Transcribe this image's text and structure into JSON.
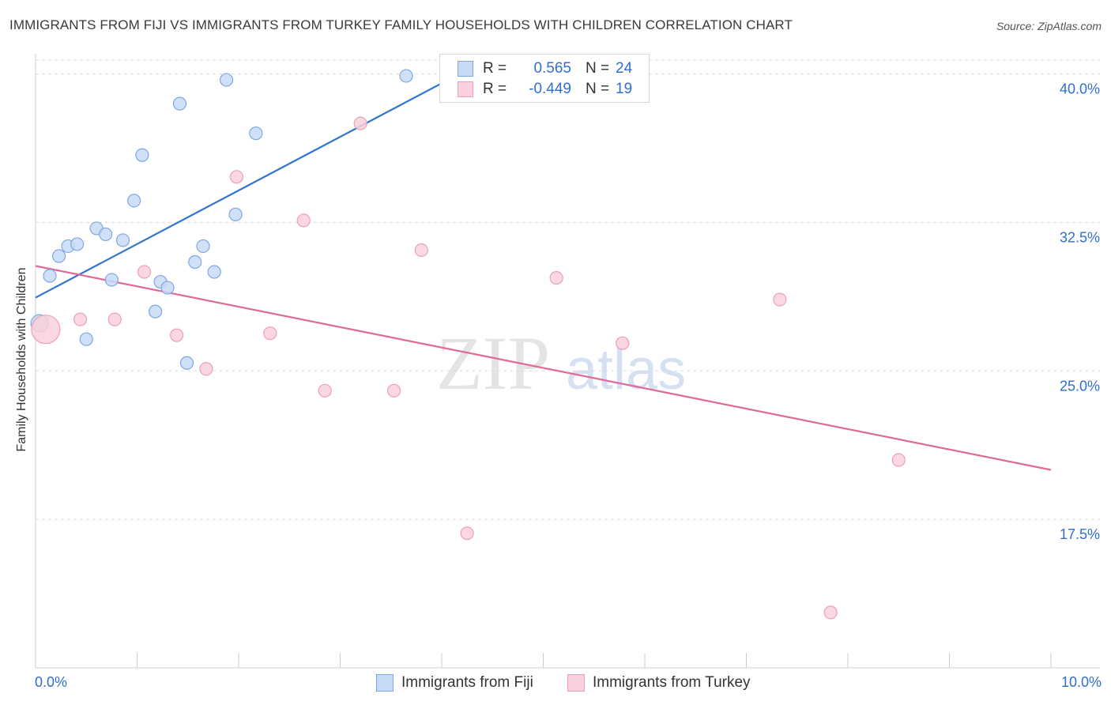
{
  "header": {
    "title": "IMMIGRANTS FROM FIJI VS IMMIGRANTS FROM TURKEY FAMILY HOUSEHOLDS WITH CHILDREN CORRELATION CHART",
    "source": "Source: ZipAtlas.com"
  },
  "watermark": {
    "zip": "ZIP",
    "atlas": "atlas"
  },
  "colors": {
    "fiji_fill": "#c7dbf7",
    "fiji_stroke": "#7fa8e0",
    "fiji_line": "#2f74d0",
    "turkey_fill": "#f9d0dc",
    "turkey_stroke": "#eba1b8",
    "turkey_line": "#e0699a",
    "axis_text": "#2f6fd0",
    "grid": "#dddddd"
  },
  "stats_legend": {
    "fiji": {
      "r_label": "R =",
      "r_value": "0.565",
      "n_label": "N =",
      "n_value": "24"
    },
    "turkey": {
      "r_label": "R =",
      "r_value": "-0.449",
      "n_label": "N =",
      "n_value": "19"
    }
  },
  "bottom_legend": {
    "fiji": "Immigrants from Fiji",
    "turkey": "Immigrants from Turkey"
  },
  "chart_data": {
    "type": "scatter",
    "title": "IMMIGRANTS FROM FIJI VS IMMIGRANTS FROM TURKEY FAMILY HOUSEHOLDS WITH CHILDREN CORRELATION CHART",
    "xlabel": "",
    "ylabel": "Family Households with Children",
    "xlim": [
      0,
      10
    ],
    "ylim": [
      10,
      40.7
    ],
    "x_tick_labels": {
      "min": "0.0%",
      "max": "10.0%"
    },
    "y_ticks": [
      {
        "value": 17.5,
        "label": "17.5%"
      },
      {
        "value": 25.0,
        "label": "25.0%"
      },
      {
        "value": 32.5,
        "label": "32.5%"
      },
      {
        "value": 40.0,
        "label": "40.0%"
      }
    ],
    "grid": true,
    "series": [
      {
        "name": "Immigrants from Fiji",
        "points": [
          {
            "x": 0.04,
            "y": 27.4,
            "size": "large"
          },
          {
            "x": 0.14,
            "y": 29.8
          },
          {
            "x": 0.23,
            "y": 30.8
          },
          {
            "x": 0.32,
            "y": 31.3
          },
          {
            "x": 0.41,
            "y": 31.4
          },
          {
            "x": 0.5,
            "y": 26.6
          },
          {
            "x": 0.6,
            "y": 32.2
          },
          {
            "x": 0.69,
            "y": 31.9
          },
          {
            "x": 0.75,
            "y": 29.6
          },
          {
            "x": 0.86,
            "y": 31.6
          },
          {
            "x": 0.97,
            "y": 33.6
          },
          {
            "x": 1.05,
            "y": 35.9
          },
          {
            "x": 1.18,
            "y": 28.0
          },
          {
            "x": 1.23,
            "y": 29.5
          },
          {
            "x": 1.3,
            "y": 29.2
          },
          {
            "x": 1.42,
            "y": 38.5
          },
          {
            "x": 1.49,
            "y": 25.4
          },
          {
            "x": 1.57,
            "y": 30.5
          },
          {
            "x": 1.65,
            "y": 31.3
          },
          {
            "x": 1.76,
            "y": 30.0
          },
          {
            "x": 1.88,
            "y": 39.7
          },
          {
            "x": 1.97,
            "y": 32.9
          },
          {
            "x": 2.17,
            "y": 37.0
          },
          {
            "x": 3.65,
            "y": 39.9
          }
        ],
        "trend": {
          "x0": 0.0,
          "y0": 28.7,
          "x1": 4.1,
          "y1": 39.8
        }
      },
      {
        "name": "Immigrants from Turkey",
        "points": [
          {
            "x": 0.1,
            "y": 27.1,
            "size": "large"
          },
          {
            "x": 0.44,
            "y": 27.6
          },
          {
            "x": 0.78,
            "y": 27.6
          },
          {
            "x": 1.07,
            "y": 30.0
          },
          {
            "x": 1.39,
            "y": 26.8
          },
          {
            "x": 1.68,
            "y": 25.1
          },
          {
            "x": 1.98,
            "y": 34.8
          },
          {
            "x": 2.31,
            "y": 26.9
          },
          {
            "x": 2.64,
            "y": 32.6
          },
          {
            "x": 2.85,
            "y": 24.0
          },
          {
            "x": 3.2,
            "y": 37.5
          },
          {
            "x": 3.53,
            "y": 24.0
          },
          {
            "x": 3.8,
            "y": 31.1
          },
          {
            "x": 4.25,
            "y": 16.8
          },
          {
            "x": 5.13,
            "y": 29.7
          },
          {
            "x": 5.78,
            "y": 26.4
          },
          {
            "x": 7.33,
            "y": 28.6
          },
          {
            "x": 7.83,
            "y": 12.8
          },
          {
            "x": 8.5,
            "y": 20.5
          }
        ],
        "trend": {
          "x0": 0.0,
          "y0": 30.3,
          "x1": 10.0,
          "y1": 20.0
        }
      }
    ]
  }
}
